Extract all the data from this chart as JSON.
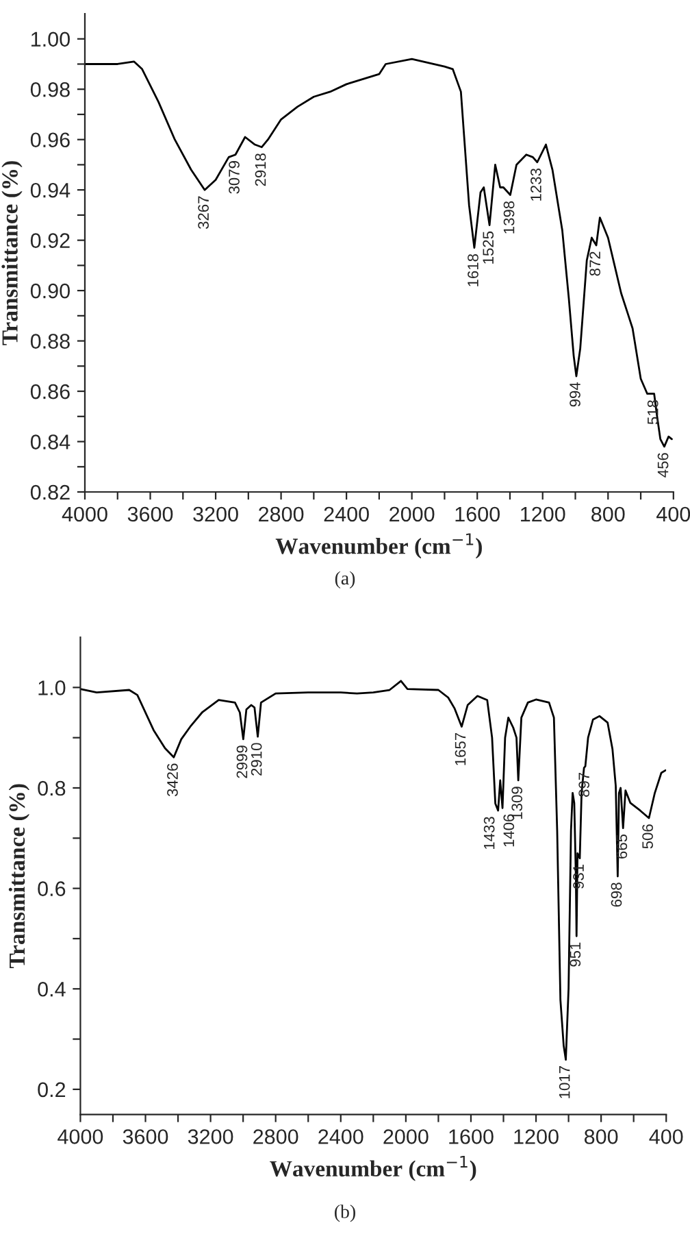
{
  "chart_data": [
    {
      "type": "line",
      "xlabel": "Wavenumber (cm$^{−1}$)",
      "ylabel": "Transmittance (%)",
      "xlim": [
        4000,
        400
      ],
      "ylim": [
        0.82,
        1.01
      ],
      "xticks": [
        4000,
        {
          "value": 3800,
          "label": null
        },
        3600,
        {
          "value": 3400,
          "label": null
        },
        3200,
        {
          "value": 3000,
          "label": null
        },
        2800,
        {
          "value": 2600,
          "label": null
        },
        2400,
        {
          "value": 2200,
          "label": null
        },
        2000,
        {
          "value": 1800,
          "label": null
        },
        1600,
        {
          "value": 1400,
          "label": null
        },
        1200,
        {
          "value": 1000,
          "label": null
        },
        800,
        {
          "value": 600,
          "label": null
        },
        400
      ],
      "yticks": [
        {
          "value": 0.82,
          "label": "0.82"
        },
        {
          "value": 0.83,
          "label": null
        },
        {
          "value": 0.84,
          "label": "0.84"
        },
        {
          "value": 0.85,
          "label": null
        },
        {
          "value": 0.86,
          "label": "0.86"
        },
        {
          "value": 0.87,
          "label": null
        },
        {
          "value": 0.88,
          "label": "0.88"
        },
        {
          "value": 0.89,
          "label": null
        },
        {
          "value": 0.9,
          "label": "0.90"
        },
        {
          "value": 0.91,
          "label": null
        },
        {
          "value": 0.92,
          "label": "0.92"
        },
        {
          "value": 0.93,
          "label": null
        },
        {
          "value": 0.94,
          "label": "0.94"
        },
        {
          "value": 0.95,
          "label": null
        },
        {
          "value": 0.96,
          "label": "0.96"
        },
        {
          "value": 0.97,
          "label": null
        },
        {
          "value": 0.98,
          "label": "0.98"
        },
        {
          "value": 0.99,
          "label": null
        },
        {
          "value": 1.0,
          "label": "1.00"
        }
      ],
      "grid": false,
      "marker": "none",
      "line_style": "solid",
      "series": [
        {
          "color": "#000000",
          "x": [
            4000,
            3800,
            3700,
            3650,
            3550,
            3450,
            3350,
            3267,
            3200,
            3120,
            3079,
            3020,
            2960,
            2918,
            2880,
            2800,
            2700,
            2600,
            2500,
            2400,
            2200,
            2160,
            2000,
            1800,
            1750,
            1700,
            1680,
            1650,
            1618,
            1580,
            1560,
            1525,
            1490,
            1460,
            1440,
            1398,
            1360,
            1300,
            1260,
            1233,
            1180,
            1140,
            1080,
            1040,
            1010,
            994,
            970,
            930,
            900,
            872,
            850,
            800,
            760,
            720,
            680,
            650,
            600,
            560,
            518,
            500,
            480,
            456,
            430,
            410
          ],
          "values": [
            0.99,
            0.99,
            0.991,
            0.988,
            0.975,
            0.96,
            0.948,
            0.94,
            0.944,
            0.953,
            0.954,
            0.961,
            0.958,
            0.957,
            0.96,
            0.968,
            0.973,
            0.977,
            0.979,
            0.982,
            0.986,
            0.99,
            0.992,
            0.989,
            0.988,
            0.979,
            0.961,
            0.934,
            0.917,
            0.939,
            0.941,
            0.926,
            0.95,
            0.941,
            0.941,
            0.938,
            0.95,
            0.954,
            0.953,
            0.951,
            0.958,
            0.948,
            0.924,
            0.897,
            0.874,
            0.866,
            0.877,
            0.912,
            0.921,
            0.918,
            0.929,
            0.921,
            0.91,
            0.899,
            0.891,
            0.885,
            0.865,
            0.859,
            0.859,
            0.85,
            0.841,
            0.838,
            0.842,
            0.841
          ]
        }
      ],
      "annotations": [
        {
          "text": "3267",
          "x": 3267,
          "y": 0.94
        },
        {
          "text": "3079",
          "x": 3079,
          "y": 0.954
        },
        {
          "text": "2918",
          "x": 2918,
          "y": 0.957
        },
        {
          "text": "1618",
          "x": 1618,
          "y": 0.917
        },
        {
          "text": "1525",
          "x": 1525,
          "y": 0.926
        },
        {
          "text": "1398",
          "x": 1398,
          "y": 0.938
        },
        {
          "text": "1233",
          "x": 1233,
          "y": 0.951
        },
        {
          "text": "994",
          "x": 994,
          "y": 0.866
        },
        {
          "text": "872",
          "x": 872,
          "y": 0.918
        },
        {
          "text": "518",
          "x": 518,
          "y": 0.859
        },
        {
          "text": "456",
          "x": 456,
          "y": 0.838
        },
        "(a)"
      ]
    },
    {
      "type": "line",
      "xlabel": "Wavenumber (cm$^{−1}$)",
      "ylabel": "Transmittance (%)",
      "xlim": [
        4000,
        400
      ],
      "ylim": [
        0.15,
        1.1
      ],
      "xticks": [
        4000,
        {
          "value": 3800,
          "label": null
        },
        3600,
        {
          "value": 3400,
          "label": null
        },
        3200,
        {
          "value": 3000,
          "label": null
        },
        2800,
        {
          "value": 2600,
          "label": null
        },
        2400,
        {
          "value": 2200,
          "label": null
        },
        2000,
        {
          "value": 1800,
          "label": null
        },
        1600,
        {
          "value": 1400,
          "label": null
        },
        1200,
        {
          "value": 1000,
          "label": null
        },
        800,
        {
          "value": 600,
          "label": null
        },
        400
      ],
      "yticks": [
        0.2,
        {
          "value": 0.3,
          "label": null
        },
        0.4,
        {
          "value": 0.5,
          "label": null
        },
        0.6,
        {
          "value": 0.7,
          "label": null
        },
        0.8,
        {
          "value": 0.9,
          "label": null
        },
        {
          "value": 1.0,
          "label": "1.0"
        }
      ],
      "grid": false,
      "marker": "none",
      "line_style": "solid",
      "series": [
        {
          "color": "#000000",
          "x": [
            4000,
            3900,
            3700,
            3650,
            3550,
            3480,
            3426,
            3380,
            3320,
            3250,
            3150,
            3050,
            3020,
            2999,
            2980,
            2950,
            2930,
            2910,
            2890,
            2800,
            2600,
            2400,
            2300,
            2200,
            2100,
            2030,
            1990,
            1800,
            1740,
            1700,
            1657,
            1620,
            1560,
            1500,
            1470,
            1450,
            1433,
            1420,
            1406,
            1390,
            1370,
            1340,
            1320,
            1309,
            1290,
            1250,
            1200,
            1120,
            1090,
            1070,
            1050,
            1030,
            1017,
            1000,
            985,
            975,
            965,
            955,
            951,
            945,
            931,
            920,
            905,
            897,
            880,
            850,
            810,
            760,
            730,
            710,
            698,
            690,
            680,
            665,
            650,
            620,
            560,
            506,
            470,
            430,
            405
          ],
          "values": [
            0.997,
            0.99,
            0.995,
            0.985,
            0.915,
            0.879,
            0.861,
            0.897,
            0.924,
            0.951,
            0.975,
            0.97,
            0.95,
            0.897,
            0.956,
            0.965,
            0.96,
            0.902,
            0.97,
            0.988,
            0.99,
            0.99,
            0.988,
            0.99,
            0.995,
            1.013,
            0.997,
            0.995,
            0.98,
            0.958,
            0.922,
            0.965,
            0.983,
            0.975,
            0.9,
            0.769,
            0.755,
            0.815,
            0.76,
            0.9,
            0.94,
            0.92,
            0.9,
            0.815,
            0.94,
            0.97,
            0.976,
            0.97,
            0.94,
            0.715,
            0.378,
            0.287,
            0.259,
            0.4,
            0.715,
            0.79,
            0.77,
            0.624,
            0.505,
            0.67,
            0.66,
            0.79,
            0.84,
            0.843,
            0.9,
            0.936,
            0.943,
            0.93,
            0.877,
            0.804,
            0.624,
            0.79,
            0.8,
            0.72,
            0.795,
            0.77,
            0.755,
            0.74,
            0.79,
            0.83,
            0.835
          ]
        }
      ],
      "annotations": [
        {
          "text": "3426",
          "x": 3426,
          "y": 0.861
        },
        {
          "text": "2999",
          "x": 2999,
          "y": 0.897
        },
        {
          "text": "2910",
          "x": 2910,
          "y": 0.902
        },
        {
          "text": "1657",
          "x": 1657,
          "y": 0.922
        },
        {
          "text": "1433",
          "x": 1433,
          "y": 0.755
        },
        {
          "text": "1406",
          "x": 1406,
          "y": 0.76
        },
        {
          "text": "1309",
          "x": 1309,
          "y": 0.815
        },
        {
          "text": "1017",
          "x": 1017,
          "y": 0.259
        },
        {
          "text": "951",
          "x": 951,
          "y": 0.505
        },
        {
          "text": "931",
          "x": 931,
          "y": 0.66
        },
        {
          "text": "897",
          "x": 897,
          "y": 0.843
        },
        {
          "text": "698",
          "x": 698,
          "y": 0.624
        },
        {
          "text": "665",
          "x": 665,
          "y": 0.72
        },
        {
          "text": "506",
          "x": 506,
          "y": 0.74
        },
        "(b)"
      ]
    }
  ]
}
